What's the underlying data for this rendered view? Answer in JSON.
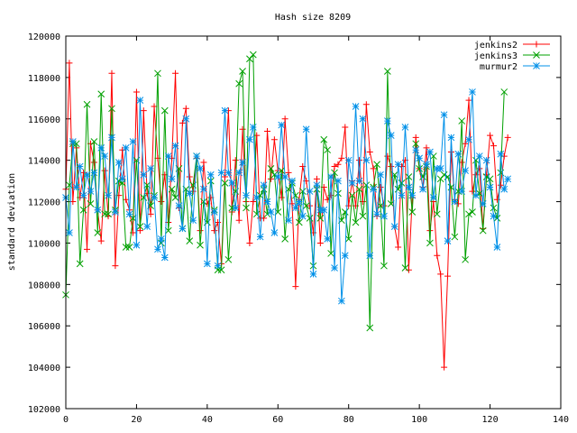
{
  "chart_data": {
    "type": "line",
    "title": "Hash size 8209",
    "xlabel": "",
    "ylabel": "standard deviation",
    "xlim": [
      0,
      140
    ],
    "ylim": [
      102000,
      120000
    ],
    "xticks": [
      0,
      20,
      40,
      60,
      80,
      100,
      120,
      140
    ],
    "yticks": [
      102000,
      104000,
      106000,
      108000,
      110000,
      112000,
      114000,
      116000,
      118000,
      120000
    ],
    "grid": false,
    "legend": "top-right",
    "series": [
      {
        "name": "jenkins2",
        "color": "#ff0000",
        "marker": "plus",
        "values": [
          112600,
          118700,
          112000,
          114600,
          112200,
          113400,
          109700,
          114800,
          113900,
          111600,
          110100,
          113500,
          111300,
          118200,
          108900,
          112300,
          114500,
          112100,
          111600,
          110500,
          117300,
          110600,
          116400,
          112400,
          111400,
          116600,
          114100,
          112000,
          113300,
          111000,
          114100,
          118200,
          111700,
          115800,
          116500,
          113200,
          112500,
          114100,
          110600,
          113900,
          111900,
          112200,
          110600,
          111000,
          109000,
          113200,
          116400,
          111500,
          114000,
          111100,
          115500,
          112000,
          110000,
          112000,
          115200,
          111200,
          111200,
          115400,
          113100,
          115000,
          113500,
          112200,
          116000,
          113400,
          111900,
          107900,
          112100,
          113700,
          113000,
          111800,
          110500,
          113100,
          110000,
          112700,
          112100,
          112300,
          113700,
          113800,
          114100,
          115600,
          111800,
          113000,
          111800,
          114000,
          112000,
          116700,
          114400,
          113600,
          111300,
          112700,
          111800,
          114200,
          113700,
          110800,
          109800,
          113700,
          114000,
          108700,
          112200,
          115100,
          113600,
          112700,
          114600,
          110600,
          112000,
          109400,
          108500,
          104000,
          108400,
          114400,
          112100,
          111900,
          113900,
          114800,
          116900,
          112500,
          113300,
          113600,
          110700,
          113300,
          115200,
          114700,
          112100,
          112800,
          114200,
          115100
        ]
      },
      {
        "name": "jenkins3",
        "color": "#00a000",
        "marker": "cross",
        "values": [
          107500,
          112800,
          114800,
          114800,
          109000,
          111600,
          116700,
          111900,
          114900,
          110500,
          117200,
          111400,
          111400,
          116500,
          111600,
          113000,
          112900,
          109800,
          109800,
          111200,
          114000,
          110800,
          112200,
          112800,
          111800,
          112300,
          118200,
          110000,
          116400,
          110600,
          112600,
          112200,
          113600,
          110700,
          112600,
          110100,
          112800,
          114200,
          109900,
          112000,
          111000,
          113000,
          111600,
          108700,
          108700,
          112900,
          109200,
          111700,
          112500,
          117700,
          118300,
          111700,
          118900,
          119100,
          111400,
          112300,
          112600,
          111400,
          113600,
          113300,
          111500,
          113500,
          110200,
          112600,
          112900,
          112300,
          111000,
          112500,
          111800,
          111200,
          108900,
          112600,
          111200,
          115000,
          114500,
          109500,
          113400,
          112400,
          111100,
          111500,
          110200,
          112300,
          111000,
          112600,
          111300,
          112800,
          105900,
          112700,
          113800,
          111800,
          108900,
          118300,
          111900,
          113300,
          112600,
          112900,
          108800,
          113200,
          111500,
          114800,
          113600,
          113200,
          113700,
          110000,
          114200,
          111400,
          113100,
          113300,
          113200,
          112700,
          110300,
          112500,
          115900,
          109200,
          111400,
          111500,
          114000,
          112400,
          110600,
          113200,
          113100,
          111700,
          111200,
          113400,
          117300
        ]
      },
      {
        "name": "murmur2",
        "color": "#0090e8",
        "marker": "star",
        "values": [
          112200,
          110500,
          114900,
          112700,
          113700,
          112300,
          113300,
          112500,
          113400,
          111600,
          114600,
          114200,
          112300,
          115100,
          111500,
          113900,
          113100,
          114600,
          111400,
          114900,
          109900,
          116900,
          113300,
          110800,
          113600,
          112200,
          109700,
          110200,
          109300,
          114200,
          113100,
          114700,
          111800,
          110700,
          116000,
          112400,
          111100,
          114200,
          113600,
          112600,
          109000,
          113300,
          111500,
          108900,
          113400,
          116400,
          113400,
          112900,
          111700,
          113400,
          113900,
          112300,
          115000,
          115600,
          112200,
          110300,
          112800,
          112000,
          111500,
          110500,
          113200,
          115700,
          113200,
          111100,
          113000,
          111700,
          112000,
          111300,
          115500,
          112500,
          108500,
          112800,
          111600,
          111600,
          110200,
          113200,
          108800,
          113000,
          107200,
          109400,
          114000,
          112900,
          116600,
          113000,
          116000,
          114000,
          109400,
          112600,
          111400,
          113300,
          111300,
          115900,
          115200,
          110800,
          113800,
          112300,
          115600,
          112700,
          112300,
          114500,
          114100,
          112600,
          113800,
          114400,
          112200,
          113600,
          113600,
          116200,
          110100,
          115100,
          112000,
          114300,
          112500,
          113500,
          115000,
          117300,
          112300,
          114200,
          111900,
          114000,
          112700,
          111300,
          109800,
          114300,
          112600,
          113100
        ]
      }
    ]
  }
}
